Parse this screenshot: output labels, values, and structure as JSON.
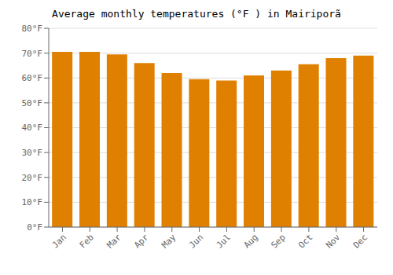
{
  "chart_data": {
    "type": "bar",
    "title": "Average monthly temperatures (°F ) in Mairiporã",
    "categories": [
      "Jan",
      "Feb",
      "Mar",
      "Apr",
      "May",
      "Jun",
      "Jul",
      "Aug",
      "Sep",
      "Oct",
      "Nov",
      "Dec"
    ],
    "values": [
      70.5,
      70.5,
      69.5,
      66.0,
      62.0,
      59.5,
      59.0,
      61.0,
      63.0,
      65.5,
      68.0,
      69.0
    ],
    "color": "#E08000",
    "ylim": [
      0,
      80
    ],
    "yticks": [
      {
        "value": 0,
        "label": "0°F"
      },
      {
        "value": 10,
        "label": "10°F"
      },
      {
        "value": 20,
        "label": "20°F"
      },
      {
        "value": 30,
        "label": "30°F"
      },
      {
        "value": 40,
        "label": "40°F"
      },
      {
        "value": 50,
        "label": "50°F"
      },
      {
        "value": 60,
        "label": "60°F"
      },
      {
        "value": 70,
        "label": "70°F"
      },
      {
        "value": 80,
        "label": "80°F"
      }
    ],
    "grid": true
  }
}
